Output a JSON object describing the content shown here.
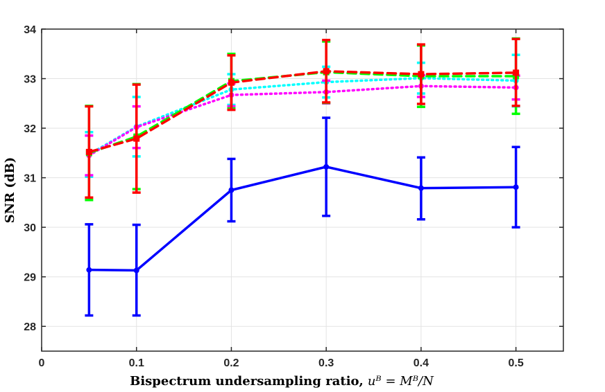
{
  "chart_data": {
    "type": "line",
    "title": "",
    "xlabel": "Bispectrum undersampling ratio,",
    "xlabel_math": "uB = MB/N",
    "xlabel_math_display": "uᴮ = Mᴮ/N",
    "ylabel": "SNR (dB)",
    "xlim": [
      0,
      0.55
    ],
    "ylim": [
      27.5,
      34
    ],
    "xticks": [
      0,
      0.1,
      0.2,
      0.3,
      0.4,
      0.5
    ],
    "xtick_labels": [
      "0",
      "0.1",
      "0.2",
      "0.3",
      "0.4",
      "0.5"
    ],
    "yticks": [
      28,
      29,
      30,
      31,
      32,
      33,
      34
    ],
    "ytick_labels": [
      "28",
      "29",
      "30",
      "31",
      "32",
      "33",
      "34"
    ],
    "grid": true,
    "x": [
      0.05,
      0.1,
      0.2,
      0.3,
      0.4,
      0.5
    ],
    "series": [
      {
        "name": "blue-solid",
        "color": "#0000ff",
        "style": "solid",
        "marker": "circle",
        "values": [
          29.14,
          29.13,
          30.75,
          31.22,
          30.79,
          30.81
        ],
        "err_low": [
          28.22,
          28.22,
          30.12,
          30.23,
          30.16,
          30.0
        ],
        "err_high": [
          30.06,
          30.05,
          31.38,
          32.21,
          31.41,
          31.62
        ]
      },
      {
        "name": "cyan-dotted",
        "color": "#00ffff",
        "style": "dotted",
        "marker": "circle",
        "values": [
          31.47,
          32.03,
          32.78,
          32.93,
          33.01,
          32.96
        ],
        "err_low": [
          31.02,
          31.43,
          32.47,
          32.62,
          32.7,
          32.44
        ],
        "err_high": [
          31.92,
          32.63,
          33.09,
          33.24,
          33.32,
          33.48
        ]
      },
      {
        "name": "magenta-dotted",
        "color": "#ff00ff",
        "style": "dotted",
        "marker": "circle",
        "values": [
          31.45,
          32.02,
          32.67,
          32.73,
          32.85,
          32.82
        ],
        "err_low": [
          31.05,
          31.6,
          32.44,
          32.5,
          32.63,
          32.58
        ],
        "err_high": [
          31.85,
          32.44,
          32.9,
          32.96,
          33.07,
          33.06
        ]
      },
      {
        "name": "green-dashed",
        "color": "#00ff00",
        "style": "dashed",
        "marker": "square",
        "values": [
          31.5,
          31.83,
          32.95,
          33.13,
          33.05,
          33.05
        ],
        "err_low": [
          30.55,
          30.77,
          32.4,
          32.51,
          32.43,
          32.29
        ],
        "err_high": [
          32.45,
          32.89,
          33.5,
          33.75,
          33.67,
          33.81
        ]
      },
      {
        "name": "red-dashed",
        "color": "#ff0000",
        "style": "dashed",
        "marker": "square",
        "values": [
          31.52,
          31.79,
          32.92,
          33.15,
          33.09,
          33.12
        ],
        "err_low": [
          30.6,
          30.7,
          32.37,
          32.52,
          32.49,
          32.45
        ],
        "err_high": [
          32.44,
          32.88,
          33.47,
          33.78,
          33.69,
          33.8
        ]
      }
    ]
  }
}
